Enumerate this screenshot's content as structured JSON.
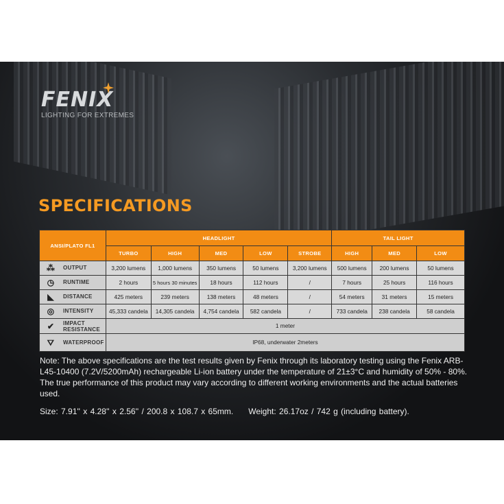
{
  "brand": {
    "logo": "FENIX",
    "tagline": "LIGHTING FOR EXTREMES"
  },
  "title": "SPECIFICATIONS",
  "table": {
    "corner": "ANSI/PLATO FL1",
    "groups": [
      "HEADLIGHT",
      "TAIL LIGHT"
    ],
    "modes": [
      "TURBO",
      "HIGH",
      "MED",
      "LOW",
      "STROBE",
      "HIGH",
      "MED",
      "LOW"
    ],
    "rows": [
      {
        "label": "OUTPUT",
        "icon": "light-rays-icon",
        "values": [
          "3,200 lumens",
          "1,000 lumens",
          "350 lumens",
          "50 lumens",
          "3,200 lumens",
          "500 lumens",
          "200 lumens",
          "50 lumens"
        ]
      },
      {
        "label": "RUNTIME",
        "icon": "clock-icon",
        "values": [
          "2 hours",
          "5 hours 30 minutes",
          "18 hours",
          "112 hours",
          "/",
          "7 hours",
          "25 hours",
          "116 hours"
        ]
      },
      {
        "label": "DISTANCE",
        "icon": "beam-distance-icon",
        "values": [
          "425 meters",
          "239 meters",
          "138 meters",
          "48 meters",
          "/",
          "54 meters",
          "31 meters",
          "15 meters"
        ]
      },
      {
        "label": "INTENSITY",
        "icon": "target-icon",
        "values": [
          "45,333 candela",
          "14,305 candela",
          "4,754 candela",
          "582 candela",
          "/",
          "733 candela",
          "238 candela",
          "58 candela"
        ]
      }
    ],
    "impact": {
      "label": "IMPACT RESISTANCE",
      "icon": "impact-icon",
      "value": "1 meter"
    },
    "waterproof": {
      "label": "WATERPROOF",
      "icon": "waterproof-icon",
      "value": "IP68, underwater 2meters"
    }
  },
  "note": "Note: The above specifications are the test results given by Fenix through its laboratory testing using the Fenix ARB-L45-10400 (7.2V/5200mAh) rechargeable Li-ion battery under the temperature of 21±3°C and humidity of 50% - 80%. The true performance of this product may vary according to different working environments and the actual batteries used.",
  "size": "Size: 7.91'' x 4.28'' x 2.56'' / 200.8 x 108.7 x 65mm.",
  "weight": "Weight: 26.17oz / 742 g (including battery).",
  "colors": {
    "accent": "#f28c14",
    "title": "#f59a22"
  }
}
